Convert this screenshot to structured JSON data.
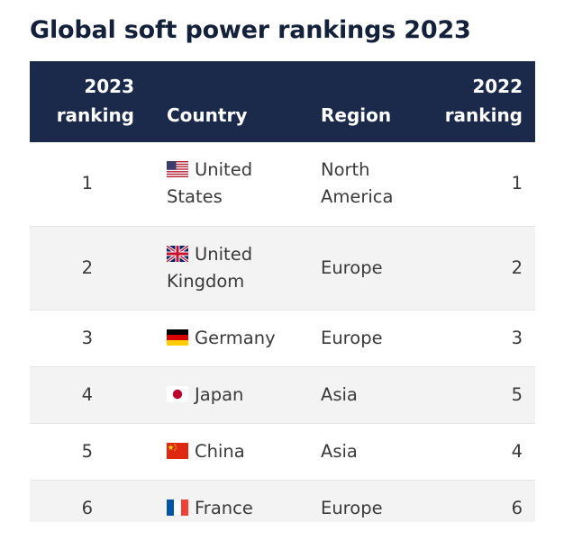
{
  "title": "Global soft power rankings 2023",
  "table": {
    "headers": {
      "rank_2023_line1": "2023",
      "rank_2023_line2": "ranking",
      "country": "Country",
      "region": "Region",
      "rank_2022_line1": "2022",
      "rank_2022_line2": "ranking"
    },
    "rows": [
      {
        "rank_2023": "1",
        "country_line1": "United",
        "country_line2": "States",
        "flag": "us-flag-icon",
        "region_line1": "North",
        "region_line2": "America",
        "rank_2022": "1"
      },
      {
        "rank_2023": "2",
        "country_line1": "United",
        "country_line2": "Kingdom",
        "flag": "uk-flag-icon",
        "region": "Europe",
        "rank_2022": "2"
      },
      {
        "rank_2023": "3",
        "country": "Germany",
        "flag": "germany-flag-icon",
        "region": "Europe",
        "rank_2022": "3"
      },
      {
        "rank_2023": "4",
        "country": "Japan",
        "flag": "japan-flag-icon",
        "region": "Asia",
        "rank_2022": "5"
      },
      {
        "rank_2023": "5",
        "country": "China",
        "flag": "china-flag-icon",
        "region": "Asia",
        "rank_2022": "4"
      },
      {
        "rank_2023": "6",
        "country": "France",
        "flag": "france-flag-icon",
        "region": "Europe",
        "rank_2022": "6"
      }
    ]
  },
  "colors": {
    "header_bg": "#1b2a4a",
    "title": "#14213a",
    "row_alt": "#f3f3f3"
  }
}
